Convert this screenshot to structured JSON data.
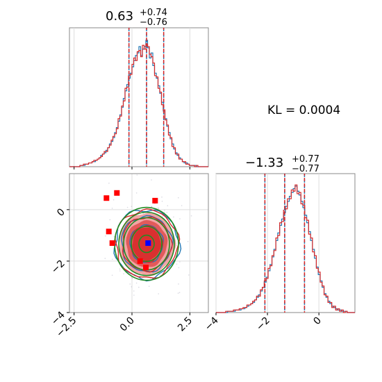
{
  "chart_data": {
    "type": "corner",
    "kl_text": "KL = 0.0004",
    "colors": {
      "series_a": "#1f77b4",
      "series_b": "#d62728",
      "green": "#228b22",
      "marker_red": "#ff0000",
      "marker_blue": "#0000ff"
    },
    "param1": {
      "title_value": "0.63",
      "title_plus": "+0.74",
      "title_minus": "−0.76",
      "xlim": [
        -2.7,
        3.3
      ],
      "ticks": [
        -2.5,
        0.0,
        2.5
      ],
      "tick_labels": [
        "−2.5",
        "0.0",
        "2.5"
      ],
      "quantiles": [
        -0.13,
        0.63,
        1.37
      ],
      "hist_a": [
        0,
        0,
        0,
        0,
        0,
        0,
        1,
        1,
        1,
        2,
        2,
        3,
        3,
        4,
        4,
        5,
        6,
        7,
        9,
        10,
        11,
        13,
        15,
        18,
        20,
        23,
        27,
        31,
        36,
        41,
        47,
        54,
        60,
        65,
        70,
        74,
        79,
        84,
        88,
        90,
        95,
        88,
        93,
        95,
        100,
        94,
        86,
        90,
        80,
        74,
        70,
        64,
        58,
        51,
        44,
        38,
        32,
        27,
        22,
        18,
        14,
        11,
        9,
        7,
        6,
        4,
        3,
        3,
        2,
        1,
        1,
        1,
        1,
        0,
        0,
        0,
        0,
        0,
        0,
        0
      ],
      "hist_b": [
        0,
        0,
        0,
        0,
        0,
        0,
        1,
        1,
        2,
        2,
        2,
        3,
        3,
        4,
        5,
        5,
        6,
        7,
        8,
        10,
        12,
        12,
        15,
        17,
        21,
        24,
        26,
        30,
        38,
        40,
        48,
        52,
        62,
        63,
        72,
        73,
        81,
        86,
        84,
        91,
        92,
        87,
        96,
        93,
        97,
        95,
        89,
        87,
        82,
        72,
        71,
        62,
        59,
        49,
        45,
        37,
        33,
        25,
        23,
        16,
        15,
        10,
        10,
        6,
        6,
        4,
        4,
        2,
        2,
        1,
        1,
        1,
        0,
        1,
        0,
        0,
        0,
        0,
        0,
        0
      ]
    },
    "param2": {
      "title_value": "−1.33",
      "title_plus": "+0.77",
      "title_minus": "−0.77",
      "xlim": [
        -4.0,
        1.4
      ],
      "ticks": [
        -4,
        -2,
        0
      ],
      "tick_labels": [
        "−4",
        "−2",
        "0"
      ],
      "quantiles": [
        -2.1,
        -1.33,
        -0.56
      ],
      "hist_a": [
        0,
        0,
        0,
        0,
        0,
        0,
        1,
        1,
        1,
        1,
        2,
        2,
        2,
        3,
        3,
        4,
        5,
        6,
        7,
        8,
        10,
        12,
        14,
        17,
        20,
        24,
        28,
        33,
        38,
        44,
        50,
        57,
        63,
        69,
        74,
        79,
        84,
        88,
        92,
        95,
        98,
        100,
        96,
        93,
        88,
        83,
        77,
        71,
        64,
        57,
        50,
        43,
        36,
        30,
        25,
        20,
        15,
        12,
        9,
        7,
        5,
        4,
        3,
        2,
        2,
        1,
        1,
        1,
        0,
        0,
        0,
        0
      ],
      "hist_b": [
        0,
        0,
        0,
        0,
        0,
        1,
        1,
        1,
        1,
        2,
        2,
        2,
        3,
        3,
        4,
        4,
        6,
        6,
        7,
        9,
        10,
        13,
        13,
        18,
        20,
        25,
        27,
        35,
        37,
        45,
        49,
        59,
        61,
        71,
        72,
        81,
        82,
        90,
        90,
        97,
        96,
        101,
        94,
        95,
        86,
        85,
        75,
        73,
        62,
        59,
        48,
        45,
        35,
        32,
        24,
        21,
        14,
        13,
        8,
        8,
        4,
        5,
        2,
        3,
        1,
        2,
        0,
        1,
        0,
        0,
        0,
        0
      ]
    },
    "scatter": {
      "red_squares": [
        [
          -1.1,
          0.45
        ],
        [
          -0.65,
          0.65
        ],
        [
          -1.0,
          -0.85
        ],
        [
          -0.85,
          -1.3
        ],
        [
          0.35,
          -2.0
        ],
        [
          0.6,
          -2.25
        ],
        [
          1.0,
          0.35
        ]
      ],
      "blue_square": [
        0.7,
        -1.3
      ],
      "center": [
        0.63,
        -1.33
      ],
      "sd": [
        0.75,
        0.77
      ],
      "green_levels": [
        0.55,
        1.1,
        1.65,
        2.0,
        2.3
      ]
    }
  }
}
